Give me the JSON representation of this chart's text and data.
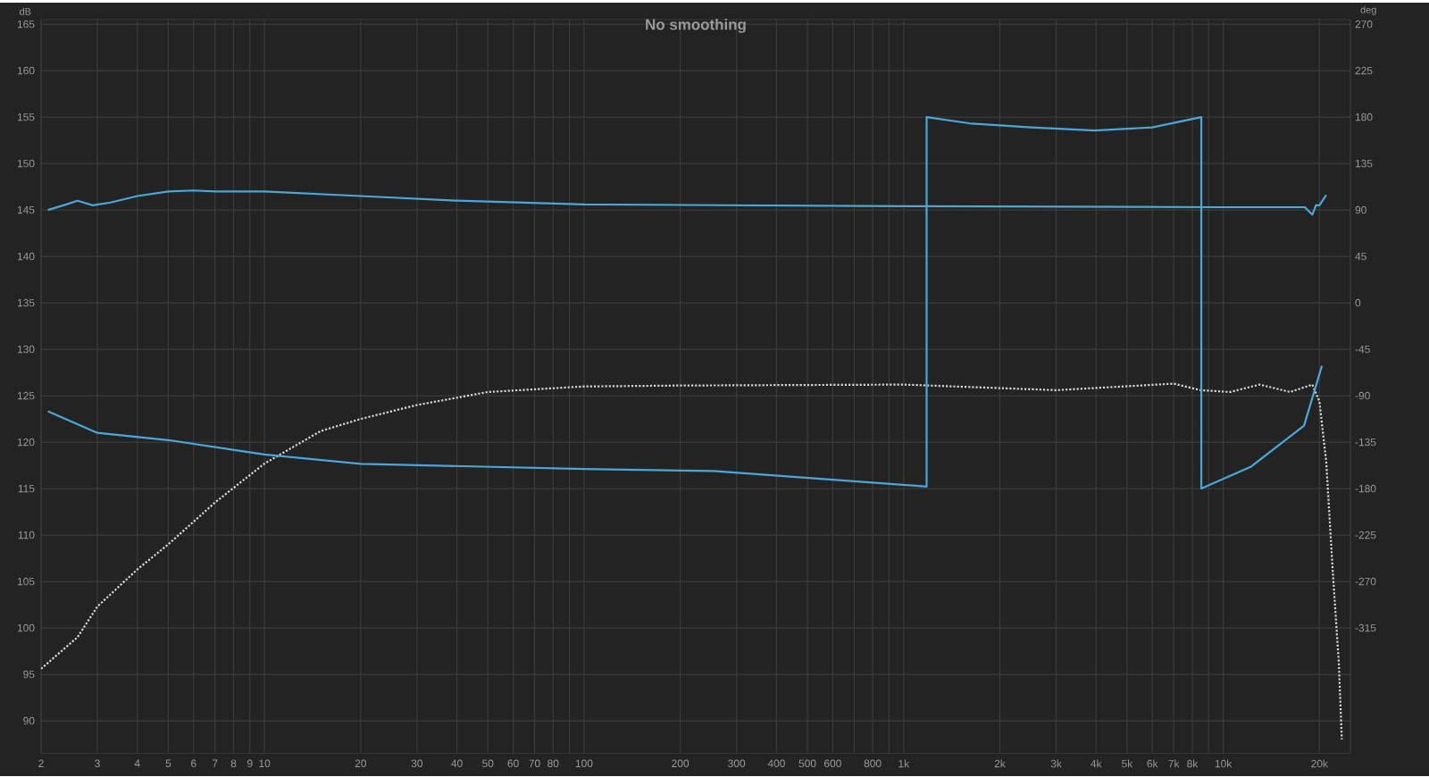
{
  "chart_data": {
    "type": "line",
    "title": "No smoothing",
    "ylabel": "dB",
    "y2label": "deg",
    "log": "x",
    "grid": true,
    "marker": "none",
    "xlim": [
      2,
      25000
    ],
    "ylim": [
      86.5,
      165.5
    ],
    "y2lim": [
      -436.5,
      274.5
    ],
    "xticks": [
      2,
      3,
      4,
      5,
      6,
      7,
      8,
      9,
      10,
      20,
      30,
      40,
      50,
      60,
      70,
      80,
      {
        "value": 90,
        "label": null
      },
      100,
      200,
      300,
      400,
      500,
      600,
      {
        "value": 700,
        "label": null
      },
      800,
      {
        "value": 900,
        "label": null
      },
      {
        "value": 1000,
        "label": "1k"
      },
      {
        "value": 2000,
        "label": "2k"
      },
      {
        "value": 3000,
        "label": "3k"
      },
      {
        "value": 4000,
        "label": "4k"
      },
      {
        "value": 5000,
        "label": "5k"
      },
      {
        "value": 6000,
        "label": "6k"
      },
      {
        "value": 7000,
        "label": "7k"
      },
      {
        "value": 8000,
        "label": "8k"
      },
      {
        "value": 9000,
        "label": null
      },
      {
        "value": 10000,
        "label": "10k"
      },
      {
        "value": 20000,
        "label": "20k"
      }
    ],
    "yticks": [
      90,
      95,
      100,
      105,
      110,
      115,
      120,
      125,
      130,
      135,
      140,
      145,
      150,
      155,
      160,
      165
    ],
    "y2ticks": [
      -315,
      -270,
      -225,
      -180,
      -135,
      -90,
      -45,
      0,
      45,
      90,
      135,
      180,
      225,
      270
    ],
    "series": [
      {
        "color": "#4aa8d8",
        "line_style": "solid",
        "x": [
          2.1,
          2.4,
          2.6,
          2.9,
          3.3,
          4,
          5,
          6,
          7,
          10,
          20,
          40,
          100,
          1000,
          10000,
          18000,
          19000,
          19500,
          20000,
          21000
        ],
        "values": [
          145,
          145.6,
          146,
          145.5,
          145.8,
          146.5,
          147,
          147.1,
          147,
          147,
          146.5,
          146,
          145.6,
          145.4,
          145.3,
          145.3,
          144.5,
          145.5,
          145.5,
          146.6
        ]
      },
      {
        "color": "#4aa8d8",
        "line_style": "solid",
        "axis": "y2",
        "x": [
          2.1,
          3,
          5,
          10,
          20,
          100,
          254,
          1180,
          1180,
          1600,
          2500,
          3960,
          6000,
          8540,
          8540,
          12180,
          17900,
          20360
        ],
        "values": [
          -105,
          -126,
          -133,
          -147,
          -156,
          -161,
          -163,
          -178,
          180,
          174,
          170,
          167,
          170,
          180,
          -180,
          -159,
          -119,
          -61
        ]
      },
      {
        "color": "#d8d8d8",
        "line_style": "dotted",
        "x": [
          2,
          2.6,
          3,
          4,
          5,
          7,
          10,
          15,
          20,
          30,
          50,
          100,
          200,
          1000,
          3000,
          7000,
          8500,
          10500,
          13000,
          16200,
          19000,
          20000,
          21000,
          22000,
          23000,
          23500
        ],
        "values": [
          95.6,
          99,
          102.3,
          106.3,
          109,
          113.5,
          117.7,
          121.2,
          122.5,
          124,
          125.4,
          126,
          126.1,
          126.2,
          125.6,
          126.3,
          125.6,
          125.4,
          126.2,
          125.4,
          126.2,
          124.4,
          117.9,
          106.3,
          96.2,
          88
        ]
      }
    ]
  }
}
